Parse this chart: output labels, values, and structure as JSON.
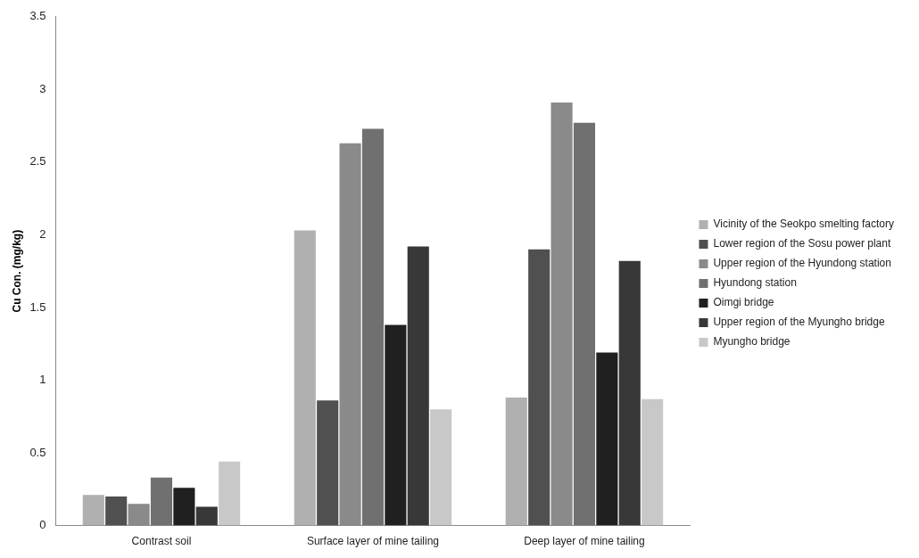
{
  "chart_data": {
    "type": "bar",
    "ylabel": "Cu Con. (mg/kg)",
    "categories": [
      "Contrast soil",
      "Surface layer of mine tailing",
      "Deep layer of mine tailing"
    ],
    "series": [
      {
        "name": "Vicinity of the Seokpo smelting factory",
        "color": "#b0b0b0",
        "values": [
          0.21,
          2.03,
          0.88
        ]
      },
      {
        "name": "Lower region of the Sosu power plant",
        "color": "#505050",
        "values": [
          0.2,
          0.86,
          1.9
        ]
      },
      {
        "name": "Upper region of the Hyundong station",
        "color": "#8a8a8a",
        "values": [
          0.15,
          2.63,
          2.91
        ]
      },
      {
        "name": "Hyundong station",
        "color": "#707070",
        "values": [
          0.33,
          2.73,
          2.77
        ]
      },
      {
        "name": "Oimgi bridge",
        "color": "#202020",
        "values": [
          0.26,
          1.38,
          1.19
        ]
      },
      {
        "name": "Upper region of the Myungho bridge",
        "color": "#383838",
        "values": [
          0.13,
          1.92,
          1.82
        ]
      },
      {
        "name": "Myungho bridge",
        "color": "#c8c8c8",
        "values": [
          0.44,
          0.8,
          0.87
        ]
      }
    ],
    "ylim": [
      0,
      3.5
    ],
    "yticks": [
      0,
      0.5,
      1,
      1.5,
      2,
      2.5,
      3,
      3.5
    ],
    "grid": false,
    "legend": "right"
  }
}
